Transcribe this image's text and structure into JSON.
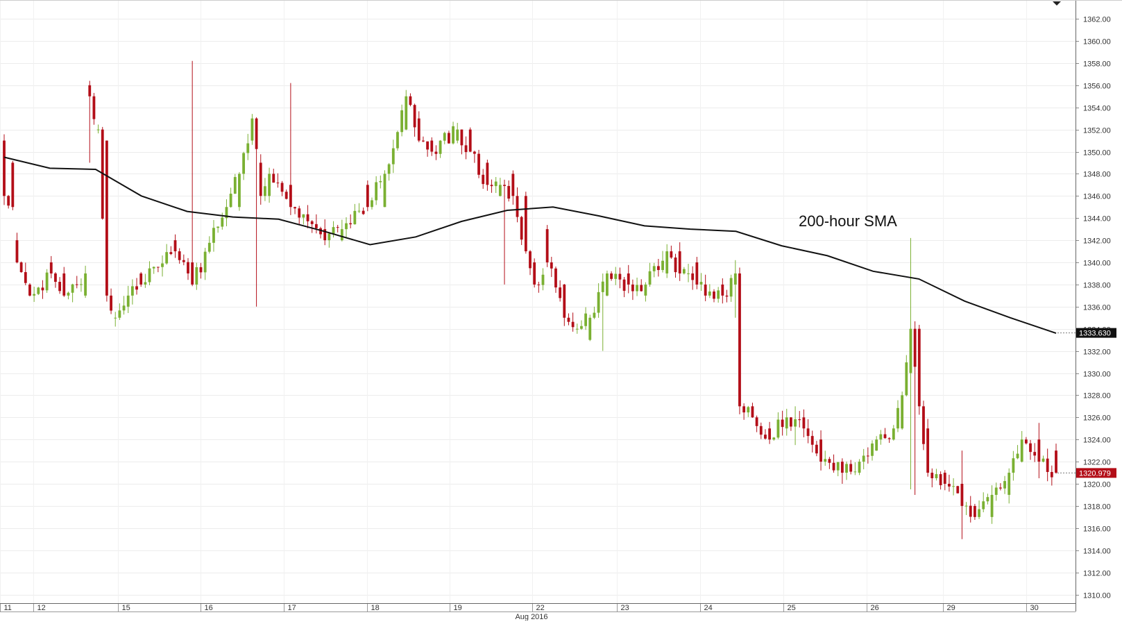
{
  "chart_data": {
    "type": "candlestick",
    "title": "",
    "xlabel": "Aug 2016",
    "ylabel": "",
    "ylim": [
      1309,
      1363.5
    ],
    "y_ticks": [
      "1310.00",
      "1312.00",
      "1314.00",
      "1316.00",
      "1318.00",
      "1320.00",
      "1322.00",
      "1324.00",
      "1326.00",
      "1328.00",
      "1330.00",
      "1332.00",
      "1334.00",
      "1336.00",
      "1338.00",
      "1340.00",
      "1342.00",
      "1344.00",
      "1346.00",
      "1348.00",
      "1350.00",
      "1352.00",
      "1354.00",
      "1356.00",
      "1358.00",
      "1360.00",
      "1362.00"
    ],
    "x_ticks": [
      "11",
      "12",
      "15",
      "16",
      "17",
      "18",
      "19",
      "22",
      "23",
      "24",
      "25",
      "26",
      "29",
      "30"
    ],
    "grid": true,
    "annotation": "200-hour SMA",
    "sma_label": "1333.630",
    "last_price_label": "1320.979",
    "sma_series": {
      "name": "200-hour SMA",
      "values": [
        1349.5,
        1348.5,
        1348.4,
        1346.0,
        1344.6,
        1344.1,
        1343.9,
        1342.8,
        1341.6,
        1342.3,
        1343.7,
        1344.7,
        1345.0,
        1344.2,
        1343.3,
        1343.0,
        1342.8,
        1341.5,
        1340.6,
        1339.2,
        1338.5,
        1336.5,
        1335.0,
        1333.6
      ]
    },
    "candles": {
      "up_color": "#7ab032",
      "down_color": "#b30e18",
      "anchors": [
        [
          0,
          1351,
          1346
        ],
        [
          2,
          1349,
          1345
        ],
        [
          3,
          1342,
          1340
        ],
        [
          6,
          1338,
          1337
        ],
        [
          11,
          1340,
          1339
        ],
        [
          14,
          1339,
          1337
        ],
        [
          19,
          1337,
          1339
        ],
        [
          20,
          1356,
          1355
        ],
        [
          22,
          1352,
          1352
        ],
        [
          24,
          1351,
          1337
        ],
        [
          26,
          1335,
          1335
        ],
        [
          29,
          1336,
          1337
        ],
        [
          32,
          1339,
          1338
        ],
        [
          40,
          1342,
          1341
        ],
        [
          44,
          1340,
          1338
        ],
        [
          52,
          1344,
          1345
        ],
        [
          55,
          1345,
          1348
        ],
        [
          58,
          1351,
          1353
        ],
        [
          60,
          1349,
          1346
        ],
        [
          62,
          1346,
          1348
        ],
        [
          67,
          1347,
          1345
        ],
        [
          75,
          1343,
          1342
        ],
        [
          79,
          1342,
          1343
        ],
        [
          85,
          1347,
          1345
        ],
        [
          89,
          1345,
          1348
        ],
        [
          94,
          1352,
          1355
        ],
        [
          97,
          1353,
          1351
        ],
        [
          100,
          1351,
          1350
        ],
        [
          106,
          1351,
          1352
        ],
        [
          109,
          1352,
          1350
        ],
        [
          113,
          1349,
          1347
        ],
        [
          116,
          1346,
          1347
        ],
        [
          119,
          1348,
          1346
        ],
        [
          122,
          1346,
          1341
        ],
        [
          124,
          1340,
          1338
        ],
        [
          127,
          1343,
          1340
        ],
        [
          131,
          1338,
          1335
        ],
        [
          134,
          1334,
          1334
        ],
        [
          137,
          1333,
          1335
        ],
        [
          141,
          1337,
          1339
        ],
        [
          146,
          1339,
          1338
        ],
        [
          150,
          1337,
          1338
        ],
        [
          155,
          1339,
          1341
        ],
        [
          158,
          1341,
          1339
        ],
        [
          160,
          1339,
          1339
        ],
        [
          162,
          1340,
          1338
        ],
        [
          164,
          1338,
          1337
        ],
        [
          168,
          1338,
          1337
        ],
        [
          171,
          1338,
          1339
        ],
        [
          172,
          1339,
          1327
        ],
        [
          175,
          1327,
          1326
        ],
        [
          179,
          1325,
          1324
        ],
        [
          183,
          1325,
          1326
        ],
        [
          187,
          1326,
          1325
        ],
        [
          191,
          1324,
          1322
        ],
        [
          196,
          1322,
          1321
        ],
        [
          200,
          1321,
          1322
        ],
        [
          204,
          1323,
          1324
        ],
        [
          208,
          1324,
          1325
        ],
        [
          210,
          1325,
          1328
        ],
        [
          212,
          1330,
          1334
        ],
        [
          214,
          1334,
          1327
        ],
        [
          216,
          1325,
          1321
        ],
        [
          220,
          1321,
          1320
        ],
        [
          224,
          1320,
          1318
        ],
        [
          227,
          1318,
          1317
        ],
        [
          231,
          1317,
          1319
        ],
        [
          235,
          1319,
          1321
        ],
        [
          238,
          1322,
          1324
        ],
        [
          242,
          1324,
          1322
        ],
        [
          246,
          1323,
          1321
        ]
      ],
      "bars": 247,
      "noise_seed": 20160811,
      "noise": 0.5,
      "wick_events": [
        [
          20,
          1356.4,
          1349
        ],
        [
          44,
          1358.2,
          1342
        ],
        [
          59,
          1342,
          1336
        ],
        [
          67,
          1356.2,
          1349
        ],
        [
          117,
          1342.5,
          1338
        ],
        [
          140,
          1331.8,
          1332
        ],
        [
          171,
          1340.2,
          1335
        ],
        [
          185,
          1327,
          1323.5
        ],
        [
          196,
          1318,
          1320
        ],
        [
          212,
          1342.2,
          1319.5
        ],
        [
          213,
          1334.5,
          1319
        ],
        [
          224,
          1323,
          1315
        ],
        [
          242,
          1325.5,
          1320.5
        ]
      ]
    }
  }
}
